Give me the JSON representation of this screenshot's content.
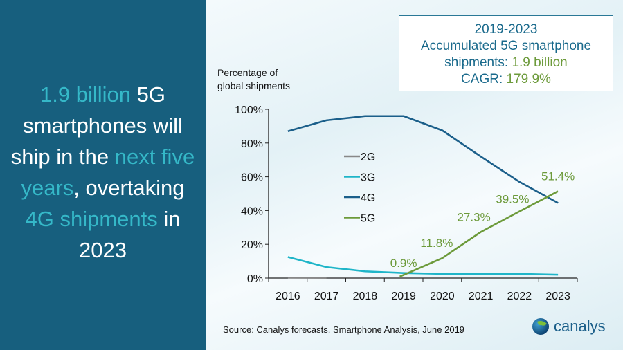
{
  "headline": {
    "parts": [
      {
        "text": "1.9 billion",
        "highlight": true
      },
      {
        "text": " 5G smartphones will ship in the ",
        "highlight": false
      },
      {
        "text": "next five years",
        "highlight": true
      },
      {
        "text": ", overtaking ",
        "highlight": false
      },
      {
        "text": "4G shipments",
        "highlight": true
      },
      {
        "text": " in 2023",
        "highlight": false
      }
    ]
  },
  "infobox": {
    "line1": "2019-2023",
    "line2": "Accumulated 5G smartphone",
    "line3_label": "shipments: ",
    "line3_value": "1.9 billion",
    "line4_label": "CAGR: ",
    "line4_value": "179.9%"
  },
  "source": "Source: Canalys forecasts, Smartphone Analysis, June 2019",
  "logo": {
    "text": "canalys"
  },
  "colors": {
    "panel": "#175f7e",
    "highlight": "#35b8c8",
    "2G": "#888888",
    "3G": "#1fb5c8",
    "4G": "#1b5f8a",
    "5G": "#6c9a3a"
  },
  "chart_data": {
    "type": "line",
    "ylabel": "Percentage of global shipments",
    "categories": [
      "2016",
      "2017",
      "2018",
      "2019",
      "2020",
      "2021",
      "2022",
      "2023"
    ],
    "ylim": [
      0,
      100
    ],
    "yticks": [
      "0%",
      "20%",
      "40%",
      "60%",
      "80%",
      "100%"
    ],
    "grid": false,
    "legend_position": "center-left",
    "series": [
      {
        "name": "2G",
        "values": [
          0.3,
          0.1,
          null,
          null,
          null,
          null,
          null,
          null
        ]
      },
      {
        "name": "3G",
        "values": [
          12.5,
          6.5,
          4,
          3,
          2.5,
          2.5,
          2.5,
          2
        ]
      },
      {
        "name": "4G",
        "values": [
          87,
          93.5,
          96,
          96,
          87.5,
          72,
          57,
          44.5
        ]
      },
      {
        "name": "5G",
        "values": [
          null,
          null,
          null,
          0.9,
          11.8,
          27.3,
          39.5,
          51.4
        ],
        "data_labels": [
          null,
          null,
          null,
          "0.9%",
          "11.8%",
          "27.3%",
          "39.5%",
          "51.4%"
        ]
      }
    ]
  }
}
